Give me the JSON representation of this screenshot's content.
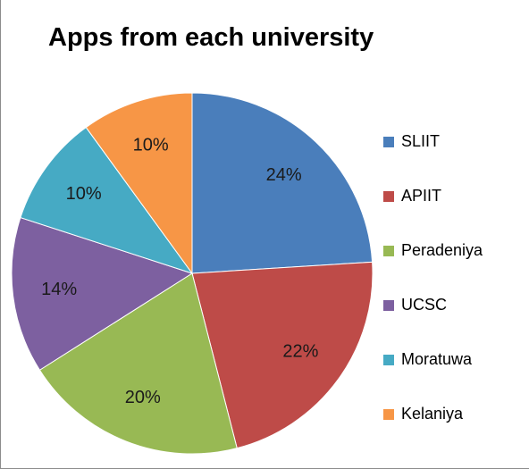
{
  "chart_data": {
    "type": "pie",
    "title": "Apps from each university",
    "categories": [
      "SLIIT",
      "APIIT",
      "Peradeniya",
      "UCSC",
      "Moratuwa",
      "Kelaniya"
    ],
    "values": [
      24,
      22,
      20,
      14,
      10,
      10
    ],
    "labels": [
      "24%",
      "22%",
      "20%",
      "14%",
      "10%",
      "10%"
    ],
    "colors": [
      "#4a7ebb",
      "#be4b48",
      "#98b954",
      "#7d60a0",
      "#46aac4",
      "#f79646"
    ],
    "start_angle": "12 o'clock, clockwise",
    "legend_position": "right"
  }
}
